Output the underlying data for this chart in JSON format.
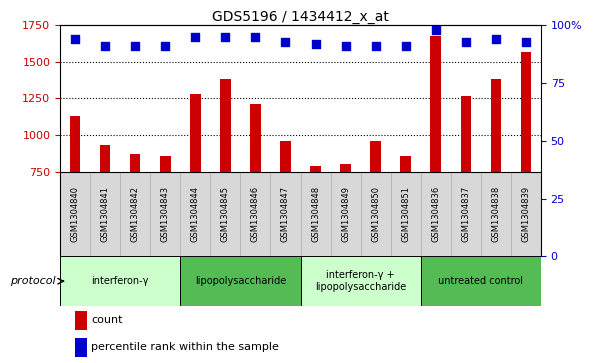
{
  "title": "GDS5196 / 1434412_x_at",
  "samples": [
    "GSM1304840",
    "GSM1304841",
    "GSM1304842",
    "GSM1304843",
    "GSM1304844",
    "GSM1304845",
    "GSM1304846",
    "GSM1304847",
    "GSM1304848",
    "GSM1304849",
    "GSM1304850",
    "GSM1304851",
    "GSM1304836",
    "GSM1304837",
    "GSM1304838",
    "GSM1304839"
  ],
  "counts": [
    1130,
    935,
    870,
    855,
    1280,
    1385,
    1215,
    960,
    790,
    800,
    960,
    855,
    1675,
    1270,
    1385,
    1565
  ],
  "percentiles": [
    94,
    91,
    91,
    91,
    95,
    95,
    95,
    93,
    92,
    91,
    91,
    91,
    98,
    93,
    94,
    93
  ],
  "groups": [
    {
      "label": "interferon-γ",
      "start": 0,
      "end": 4,
      "color": "#ccffcc"
    },
    {
      "label": "lipopolysaccharide",
      "start": 4,
      "end": 8,
      "color": "#55bb55"
    },
    {
      "label": "interferon-γ +\nlipopolysaccharide",
      "start": 8,
      "end": 12,
      "color": "#ccffcc"
    },
    {
      "label": "untreated control",
      "start": 12,
      "end": 16,
      "color": "#55bb55"
    }
  ],
  "ylim_left": [
    750,
    1750
  ],
  "ylim_right": [
    0,
    100
  ],
  "yticks_left": [
    750,
    1000,
    1250,
    1500,
    1750
  ],
  "yticks_right": [
    0,
    25,
    50,
    75,
    100
  ],
  "ytick_labels_right": [
    "0",
    "25",
    "50",
    "75",
    "100%"
  ],
  "bar_color": "#cc0000",
  "dot_color": "#0000cc",
  "bg_color": "#ffffff",
  "plot_bg_color": "#ffffff",
  "label_bg_color": "#d8d8d8",
  "tick_color_left": "#cc0000",
  "tick_color_right": "#0000cc",
  "grid_color": "#000000",
  "protocol_label": "protocol",
  "legend_count_label": "count",
  "legend_percentile_label": "percentile rank within the sample",
  "bar_width": 0.35,
  "dot_size": 30
}
